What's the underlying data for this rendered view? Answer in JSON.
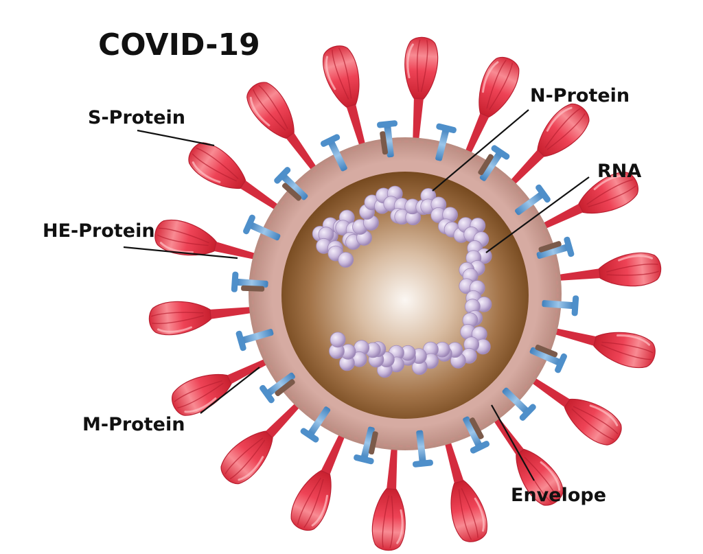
{
  "title": "COVID-19",
  "labels": {
    "s_protein": "S-Protein",
    "he_protein": "HE-Protein",
    "m_protein": "M-Protein",
    "n_protein": "N-Protein",
    "rna": "RNA",
    "envelope": "Envelope"
  },
  "colors": {
    "spike": "#e8354a",
    "spike_light": "#f6878f",
    "he_protein": "#5b9bd2",
    "m_protein": "#7b5a4a",
    "envelope_outer": "#c99c8f",
    "envelope_inner": "#d8b0a8",
    "core_light": "#f7f0ea",
    "core_dark": "#6b3f15",
    "rna": "#c9b8d9"
  }
}
